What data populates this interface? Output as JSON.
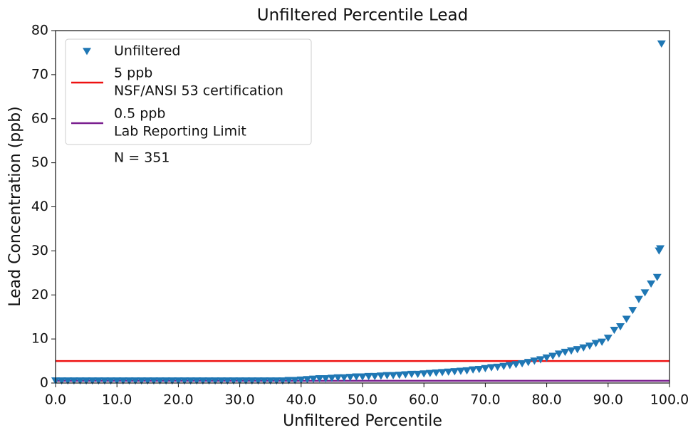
{
  "chart_data": {
    "type": "scatter",
    "title": "Unfiltered Percentile Lead",
    "x_label": "Unfiltered Percentile",
    "y_label": "Lead Concentration (ppb)",
    "annotation": "N = 351",
    "xlim": [
      0,
      100
    ],
    "ylim": [
      0,
      80
    ],
    "xticks": [
      {
        "value": 0,
        "label": "0.0"
      },
      {
        "value": 10,
        "label": "10.0"
      },
      {
        "value": 20,
        "label": "20.0"
      },
      {
        "value": 30,
        "label": "30.0"
      },
      {
        "value": 40,
        "label": "40.0"
      },
      {
        "value": 50,
        "label": "50.0"
      },
      {
        "value": 60,
        "label": "60.0"
      },
      {
        "value": 70,
        "label": "70.0"
      },
      {
        "value": 80,
        "label": "80.0"
      },
      {
        "value": 90,
        "label": "90.0"
      },
      {
        "value": 100,
        "label": "100.0"
      }
    ],
    "yticks": [
      0,
      10,
      20,
      30,
      40,
      50,
      60,
      70,
      80
    ],
    "legend": "upper left",
    "x": [
      0,
      1,
      2,
      3,
      4,
      5,
      6,
      7,
      8,
      9,
      10,
      11,
      12,
      13,
      14,
      15,
      16,
      17,
      18,
      19,
      20,
      21,
      22,
      23,
      24,
      25,
      26,
      27,
      28,
      29,
      30,
      31,
      32,
      33,
      34,
      35,
      36,
      37,
      38,
      39,
      40,
      41,
      42,
      43,
      44,
      45,
      46,
      47,
      48,
      49,
      50,
      51,
      52,
      53,
      54,
      55,
      56,
      57,
      58,
      59,
      60,
      61,
      62,
      63,
      64,
      65,
      66,
      67,
      68,
      69,
      70,
      71,
      72,
      73,
      74,
      75,
      76,
      77,
      78,
      79,
      80,
      81,
      82,
      83,
      84,
      85,
      86,
      87,
      88,
      89,
      90,
      91,
      92,
      93,
      94,
      95,
      96,
      97,
      98,
      98.3,
      98.5,
      98.7
    ],
    "series": [
      {
        "name": "Unfiltered",
        "color": "#1f77b4",
        "marker": "triangle-down",
        "values": [
          0.5,
          0.5,
          0.5,
          0.5,
          0.5,
          0.5,
          0.5,
          0.5,
          0.5,
          0.5,
          0.5,
          0.5,
          0.5,
          0.5,
          0.5,
          0.5,
          0.5,
          0.5,
          0.5,
          0.5,
          0.5,
          0.5,
          0.5,
          0.5,
          0.5,
          0.5,
          0.5,
          0.5,
          0.5,
          0.5,
          0.5,
          0.5,
          0.5,
          0.5,
          0.5,
          0.5,
          0.5,
          0.5,
          0.6,
          0.6,
          0.7,
          0.8,
          0.9,
          1.0,
          1.0,
          1.1,
          1.2,
          1.2,
          1.3,
          1.4,
          1.4,
          1.5,
          1.5,
          1.6,
          1.7,
          1.7,
          1.8,
          1.9,
          2.0,
          2.0,
          2.1,
          2.2,
          2.3,
          2.4,
          2.5,
          2.6,
          2.7,
          2.8,
          3.0,
          3.1,
          3.3,
          3.5,
          3.6,
          3.8,
          4.0,
          4.2,
          4.4,
          4.7,
          5.0,
          5.3,
          5.7,
          6.1,
          6.6,
          7.0,
          7.3,
          7.6,
          8.0,
          8.4,
          9.0,
          9.3,
          10.2,
          12.0,
          12.8,
          14.5,
          16.5,
          19.0,
          20.5,
          22.5,
          24,
          30,
          30.5,
          77
        ]
      }
    ],
    "lines": [
      {
        "name": [
          "5 ppb",
          "NSF/ANSI 53 certification"
        ],
        "value": 5,
        "color": "#ee1111"
      },
      {
        "name": [
          "0.5 ppb",
          "Lab Reporting Limit"
        ],
        "value": 0.5,
        "color": "#7a1f8f"
      }
    ]
  }
}
